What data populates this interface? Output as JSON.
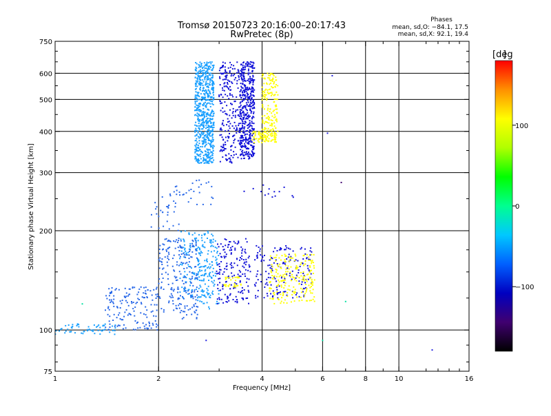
{
  "chart_data": {
    "type": "scatter",
    "title": "Tromsø 20150723 20:16:00–20:17:43",
    "subtitle": "RwPretec (8p)",
    "xlabel": "Frequency [MHz]",
    "ylabel": "Stationary phase Virtual Height [km]",
    "x_scale": "log",
    "y_scale": "log",
    "xlim": [
      1,
      16
    ],
    "ylim": [
      75,
      750
    ],
    "grid": true,
    "x_ticks": [
      1,
      2,
      4,
      6,
      8,
      10,
      16
    ],
    "x_minor_ticks": [
      3,
      5,
      7,
      9,
      12,
      13,
      14,
      15
    ],
    "y_ticks": [
      75,
      100,
      200,
      300,
      400,
      500,
      600,
      750
    ],
    "x_gridlines": [
      2,
      4,
      6,
      8,
      10
    ],
    "y_gridlines": [
      100,
      200,
      300,
      400,
      500,
      600
    ],
    "stats": {
      "header": "Phases",
      "line_o": "mean, sd,O: −84.1, 17.5",
      "line_x": "mean, sd,X:  92.1, 19.4"
    },
    "colorbar": {
      "unit": "[deg",
      "ticks": [
        100,
        0,
        -100
      ],
      "tick_labels": [
        "100",
        "0",
        "−100"
      ],
      "range": [
        -180,
        180
      ],
      "colors": [
        "#000000",
        "#400070",
        "#0000c0",
        "#0060ff",
        "#00c8ff",
        "#00ff90",
        "#00ff00",
        "#b0ff00",
        "#ffff00",
        "#ff9000",
        "#ff0000"
      ]
    },
    "series": [
      {
        "phase_deg": -100,
        "color": "#1aa0ff",
        "regions": [
          {
            "x": [
              2.55,
              2.9
            ],
            "y": [
              320,
              650
            ],
            "density": 700
          },
          {
            "x": [
              1.0,
              1.5
            ],
            "y": [
              97,
              105
            ],
            "density": 60
          },
          {
            "x": [
              2.3,
              2.9
            ],
            "y": [
              125,
              200
            ],
            "density": 160
          },
          {
            "x": [
              2.6,
              3.0
            ],
            "y": [
              115,
              190
            ],
            "density": 90
          }
        ]
      },
      {
        "phase_deg": -110,
        "color": "#2868e8",
        "regions": [
          {
            "x": [
              1.4,
              2.0
            ],
            "y": [
              100,
              135
            ],
            "density": 160
          },
          {
            "x": [
              2.0,
              2.6
            ],
            "y": [
              108,
              190
            ],
            "density": 220
          },
          {
            "x": [
              1.9,
              2.3
            ],
            "y": [
              200,
              260
            ],
            "density": 30
          },
          {
            "x": [
              2.2,
              2.9
            ],
            "y": [
              240,
              285
            ],
            "density": 30
          }
        ]
      },
      {
        "phase_deg": -125,
        "color": "#1010d8",
        "regions": [
          {
            "x": [
              3.0,
              3.45
            ],
            "y": [
              320,
              650
            ],
            "density": 220
          },
          {
            "x": [
              3.45,
              3.8
            ],
            "y": [
              330,
              650
            ],
            "density": 480
          },
          {
            "x": [
              2.95,
              3.7
            ],
            "y": [
              120,
              190
            ],
            "density": 170
          },
          {
            "x": [
              3.8,
              5.6
            ],
            "y": [
              125,
              180
            ],
            "density": 170
          },
          {
            "x": [
              3.5,
              5.0
            ],
            "y": [
              250,
              275
            ],
            "density": 14
          }
        ]
      },
      {
        "phase_deg": 95,
        "color": "#ffff00",
        "regions": [
          {
            "x": [
              4.0,
              4.45
            ],
            "y": [
              380,
              600
            ],
            "density": 180
          },
          {
            "x": [
              3.75,
              4.4
            ],
            "y": [
              370,
              400
            ],
            "density": 70
          },
          {
            "x": [
              4.2,
              5.7
            ],
            "y": [
              120,
              170
            ],
            "density": 210
          },
          {
            "x": [
              3.1,
              3.5
            ],
            "y": [
              135,
              145
            ],
            "density": 30
          }
        ]
      }
    ],
    "annotations": [
      {
        "x": 12.5,
        "y": 87,
        "phase_deg": -110
      },
      {
        "x": 6.4,
        "y": 590,
        "phase_deg": -110
      },
      {
        "x": 6.2,
        "y": 395,
        "phase_deg": -120
      },
      {
        "x": 6.8,
        "y": 280,
        "phase_deg": -160
      },
      {
        "x": 7.0,
        "y": 122,
        "phase_deg": 20
      },
      {
        "x": 1.2,
        "y": 120,
        "phase_deg": 20
      },
      {
        "x": 2.75,
        "y": 93,
        "phase_deg": -100
      },
      {
        "x": 6.0,
        "y": 93,
        "phase_deg": -20
      }
    ]
  }
}
